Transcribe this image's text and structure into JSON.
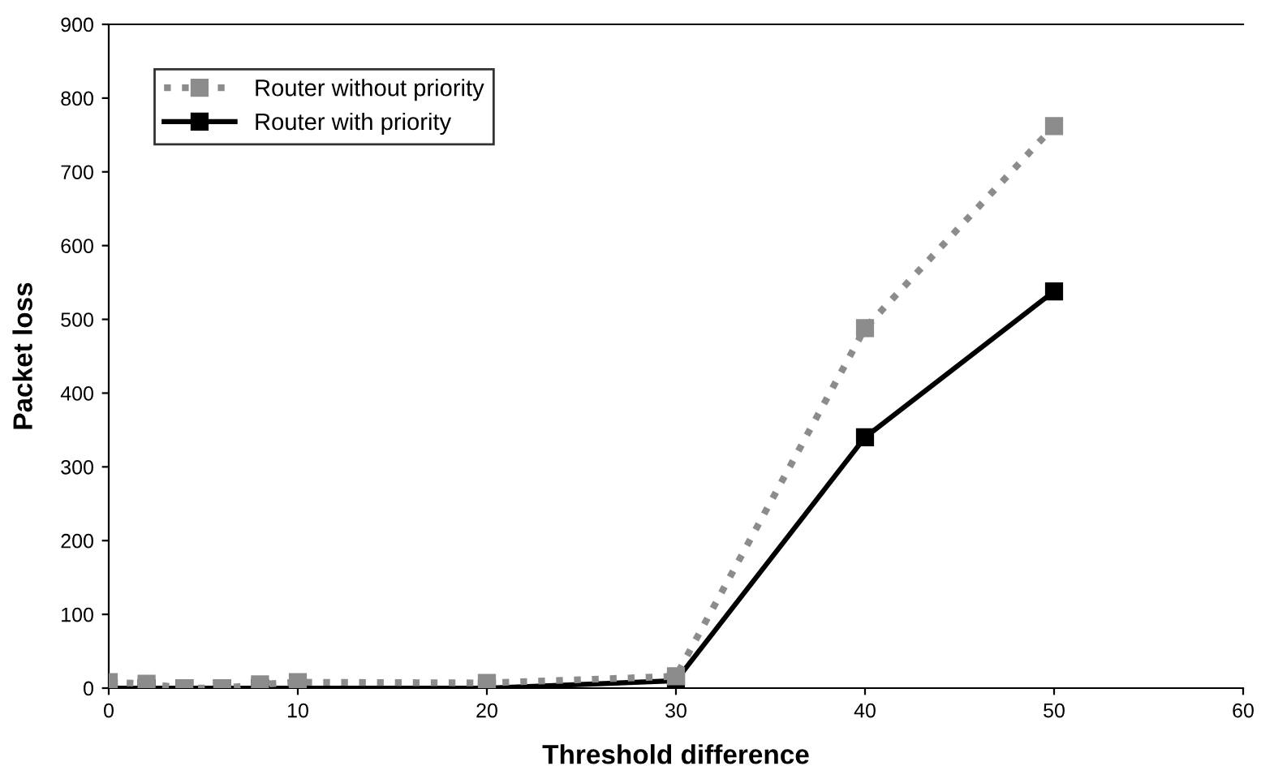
{
  "chart_data": {
    "type": "line",
    "xlabel": "Threshold difference",
    "ylabel": "Packet loss",
    "x": [
      0,
      2,
      4,
      6,
      8,
      10,
      20,
      30,
      40,
      50
    ],
    "series": [
      {
        "name": "Router without priority",
        "color": "#8c8c8c",
        "line_style": "dotted",
        "values": [
          8,
          6,
          0,
          0,
          5,
          8,
          7,
          16,
          488,
          762
        ]
      },
      {
        "name": "Router with priority",
        "color": "#000000",
        "line_style": "solid",
        "values": [
          0,
          0,
          0,
          0,
          0,
          0,
          0,
          10,
          340,
          538
        ]
      }
    ],
    "xlim": [
      0,
      60
    ],
    "xticks": [
      0,
      10,
      20,
      30,
      40,
      50,
      60
    ],
    "ylim": [
      0,
      900
    ],
    "yticks": [
      0,
      100,
      200,
      300,
      400,
      500,
      600,
      700,
      800,
      900
    ],
    "marker": "square",
    "grid": false,
    "legend": "top left"
  }
}
